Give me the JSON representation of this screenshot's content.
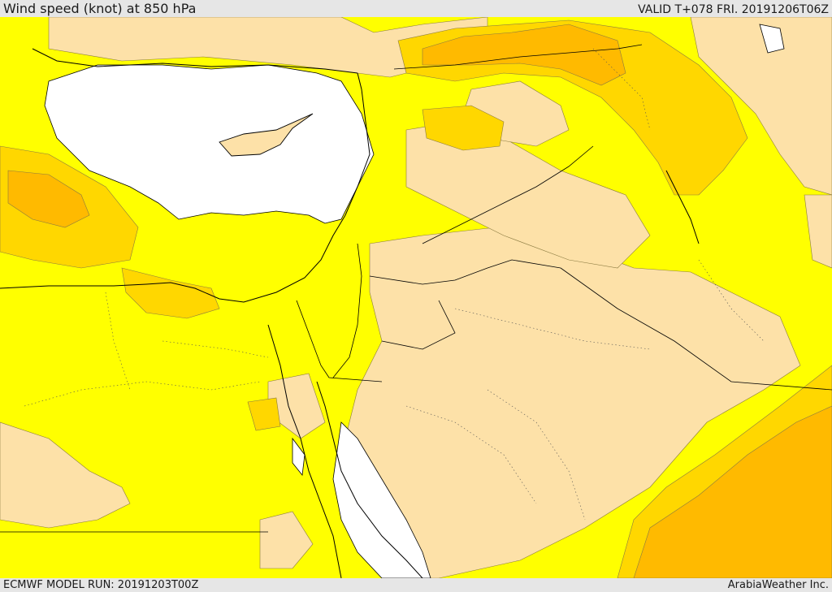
{
  "header": {
    "title": "Wind speed (knot) at 850 hPa",
    "valid": "VALID T+078 FRI. 20191206T06Z"
  },
  "footer": {
    "model_run": "ECMWF MODEL RUN: 20191203T00Z",
    "brand": "ArabiaWeather Inc."
  },
  "map": {
    "colors": {
      "sea": "#ffffff",
      "calm": "#fde1a8",
      "yellow": "#ffff00",
      "gold": "#ffd700",
      "orange": "#ffba00",
      "border": "#000000"
    }
  }
}
